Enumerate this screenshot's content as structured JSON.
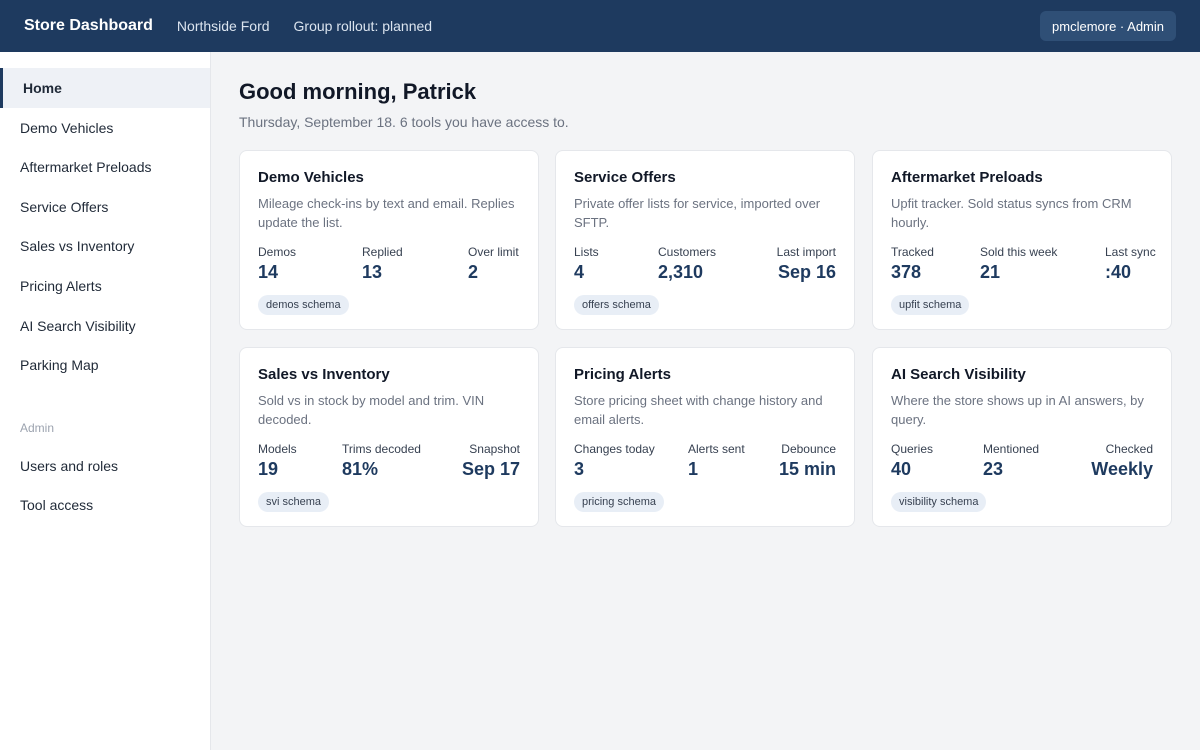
{
  "header": {
    "brand": "Store Dashboard",
    "store": "Northside Ford",
    "rollout": "Group rollout: planned",
    "user": "pmclemore · Admin"
  },
  "sidebar": {
    "items": [
      {
        "label": "Home",
        "active": true
      },
      {
        "label": "Demo Vehicles"
      },
      {
        "label": "Aftermarket Preloads"
      },
      {
        "label": "Service Offers"
      },
      {
        "label": "Sales vs Inventory"
      },
      {
        "label": "Pricing Alerts"
      },
      {
        "label": "AI Search Visibility"
      },
      {
        "label": "Parking Map"
      }
    ],
    "admin_heading": "Admin",
    "admin_items": [
      {
        "label": "Users and roles"
      },
      {
        "label": "Tool access"
      }
    ]
  },
  "main": {
    "greeting": "Good morning, Patrick",
    "subtitle": "Thursday, September 18. 6 tools you have access to."
  },
  "cards": [
    {
      "title": "Demo Vehicles",
      "desc": "Mileage check-ins by text and email. Replies update the list.",
      "stats": [
        {
          "label": "Demos",
          "value": "14"
        },
        {
          "label": "Replied",
          "value": "13"
        },
        {
          "label": "Over limit",
          "value": "2"
        }
      ],
      "tag": "demos schema"
    },
    {
      "title": "Service Offers",
      "desc": "Private offer lists for service, imported over SFTP.",
      "stats": [
        {
          "label": "Lists",
          "value": "4"
        },
        {
          "label": "Customers",
          "value": "2,310"
        },
        {
          "label": "Last import",
          "value": "Sep 16"
        }
      ],
      "tag": "offers schema"
    },
    {
      "title": "Aftermarket Preloads",
      "desc": "Upfit tracker. Sold status syncs from CRM hourly.",
      "stats": [
        {
          "label": "Tracked",
          "value": "378"
        },
        {
          "label": "Sold this week",
          "value": "21"
        },
        {
          "label": "Last sync",
          "value": ":40"
        }
      ],
      "tag": "upfit schema"
    },
    {
      "title": "Sales vs Inventory",
      "desc": "Sold vs in stock by model and trim. VIN decoded.",
      "stats": [
        {
          "label": "Models",
          "value": "19"
        },
        {
          "label": "Trims decoded",
          "value": "81%"
        },
        {
          "label": "Snapshot",
          "value": "Sep 17"
        }
      ],
      "tag": "svi schema"
    },
    {
      "title": "Pricing Alerts",
      "desc": "Store pricing sheet with change history and email alerts.",
      "stats": [
        {
          "label": "Changes today",
          "value": "3"
        },
        {
          "label": "Alerts sent",
          "value": "1"
        },
        {
          "label": "Debounce",
          "value": "15 min"
        }
      ],
      "tag": "pricing schema"
    },
    {
      "title": "AI Search Visibility",
      "desc": "Where the store shows up in AI answers, by query.",
      "stats": [
        {
          "label": "Queries",
          "value": "40"
        },
        {
          "label": "Mentioned",
          "value": "23"
        },
        {
          "label": "Checked",
          "value": "Weekly"
        }
      ],
      "tag": "visibility schema"
    }
  ]
}
